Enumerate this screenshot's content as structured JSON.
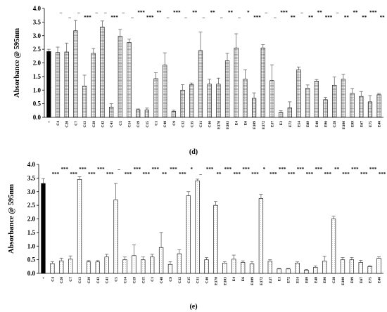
{
  "chart_data": [
    {
      "type": "bar",
      "panel_label": "(d)",
      "ylabel": "Absorbance @ 595nm",
      "ylim": [
        0,
        4
      ],
      "yticks": [
        "0.0",
        "0.5",
        "1.0",
        "1.5",
        "2.0",
        "2.5",
        "3.0",
        "3.5",
        "4.0"
      ],
      "categories": [
        "+",
        "C4",
        "C20",
        "C7",
        "C13",
        "C29",
        "C42",
        "C41",
        "C5",
        "C14",
        "C19",
        "C15",
        "C1",
        "C48",
        "C9",
        "C32",
        "C35",
        "C31",
        "C46",
        "E170",
        "E103",
        "E4",
        "E6",
        "E109",
        "E172",
        "E37",
        "E3",
        "E72",
        "E54",
        "E89",
        "E48",
        "E96",
        "C28",
        "E100",
        "E99",
        "E67",
        "E75",
        "E46"
      ],
      "values": [
        2.42,
        2.38,
        2.4,
        3.18,
        1.15,
        2.35,
        3.32,
        0.38,
        2.98,
        2.75,
        0.28,
        0.27,
        1.42,
        1.92,
        0.22,
        1.0,
        1.2,
        2.45,
        1.22,
        1.22,
        2.08,
        2.55,
        1.4,
        0.7,
        2.55,
        1.35,
        0.18,
        0.35,
        1.75,
        1.07,
        1.33,
        0.65,
        1.18,
        1.4,
        0.88,
        0.77,
        0.57,
        0.83
      ],
      "errors": [
        0.08,
        0.2,
        0.33,
        0.38,
        0.4,
        0.18,
        0.22,
        0.12,
        0.25,
        0.12,
        0.03,
        0.07,
        0.22,
        0.45,
        0.04,
        0.2,
        0.06,
        0.68,
        0.18,
        0.22,
        0.27,
        0.52,
        0.35,
        0.2,
        0.12,
        0.58,
        0.06,
        0.22,
        0.1,
        0.12,
        0.06,
        0.08,
        0.3,
        0.18,
        0.18,
        0.18,
        0.23,
        0.05
      ],
      "significance": [
        "",
        "–",
        "–",
        "–",
        "***",
        "–",
        "–",
        "***",
        "–",
        "–",
        "***",
        "***",
        "**",
        "–",
        "***",
        "–",
        "**",
        "–",
        "**",
        "–",
        "**",
        "–",
        "*",
        "***",
        "–",
        "–",
        "***",
        "**",
        "–",
        "**",
        "**",
        "***",
        "–",
        "**",
        "**",
        "**",
        "***",
        "**"
      ],
      "sig_row": [
        0,
        0,
        1,
        0,
        1,
        0,
        0,
        1,
        0,
        1,
        0,
        1,
        0,
        1,
        0,
        1,
        0,
        1,
        0,
        1,
        0,
        1,
        0,
        1,
        0,
        1,
        0,
        1,
        0,
        1,
        0,
        1,
        0,
        1,
        0,
        1,
        0,
        1
      ]
    },
    {
      "type": "bar",
      "panel_label": "(e)",
      "ylabel": "Absorbance @ 595nm",
      "ylim": [
        0,
        4
      ],
      "yticks": [
        "0.0",
        "0.5",
        "1.0",
        "1.5",
        "2.0",
        "2.5",
        "3.0",
        "3.5",
        "4.0"
      ],
      "categories": [
        "+",
        "C4",
        "C20",
        "C7",
        "C13",
        "C29",
        "C42",
        "C41",
        "C5",
        "C14",
        "C19",
        "C15",
        "C1",
        "C48",
        "C9",
        "C32",
        "C35",
        "C31",
        "C46",
        "E170",
        "E103",
        "E4",
        "E6",
        "E109",
        "E172",
        "E37",
        "E3",
        "E72",
        "E54",
        "E89",
        "E48",
        "E96",
        "C28",
        "E100",
        "E99",
        "E67",
        "E75",
        "E46"
      ],
      "values": [
        3.3,
        0.36,
        0.46,
        0.52,
        3.45,
        0.42,
        0.42,
        0.6,
        2.7,
        0.5,
        0.65,
        0.5,
        0.6,
        0.95,
        0.33,
        0.72,
        2.85,
        3.4,
        0.5,
        2.5,
        0.38,
        0.52,
        0.4,
        0.35,
        2.75,
        0.45,
        0.16,
        0.16,
        0.38,
        0.12,
        0.22,
        0.45,
        2.0,
        0.5,
        0.5,
        0.4,
        0.25,
        0.55
      ],
      "errors": [
        0.18,
        0.07,
        0.1,
        0.12,
        0.1,
        0.05,
        0.05,
        0.1,
        0.6,
        0.1,
        0.4,
        0.1,
        0.1,
        0.55,
        0.1,
        0.15,
        0.15,
        0.06,
        0.08,
        0.14,
        0.05,
        0.15,
        0.06,
        0.08,
        0.15,
        0.05,
        0.02,
        0.02,
        0.04,
        0.02,
        0.05,
        0.18,
        0.1,
        0.08,
        0.08,
        0.08,
        0.03,
        0.06
      ],
      "significance": [
        "",
        "***",
        "***",
        "***",
        "***",
        "***",
        "***",
        "***",
        "–",
        "***",
        "***",
        "***",
        "***",
        "**",
        "***",
        "***",
        "*",
        "–",
        "***",
        "**",
        "***",
        "***",
        "***",
        "***",
        "*",
        "***",
        "***",
        "***",
        "***",
        "***",
        "***",
        "***",
        "**",
        "***",
        "***",
        "***",
        "***",
        "***"
      ],
      "sig_row": [
        0,
        1,
        0,
        1,
        0,
        1,
        0,
        1,
        0,
        1,
        0,
        1,
        0,
        1,
        0,
        1,
        0,
        1,
        0,
        1,
        0,
        1,
        0,
        1,
        0,
        1,
        0,
        1,
        0,
        1,
        0,
        1,
        0,
        1,
        0,
        1,
        0,
        1
      ]
    }
  ]
}
